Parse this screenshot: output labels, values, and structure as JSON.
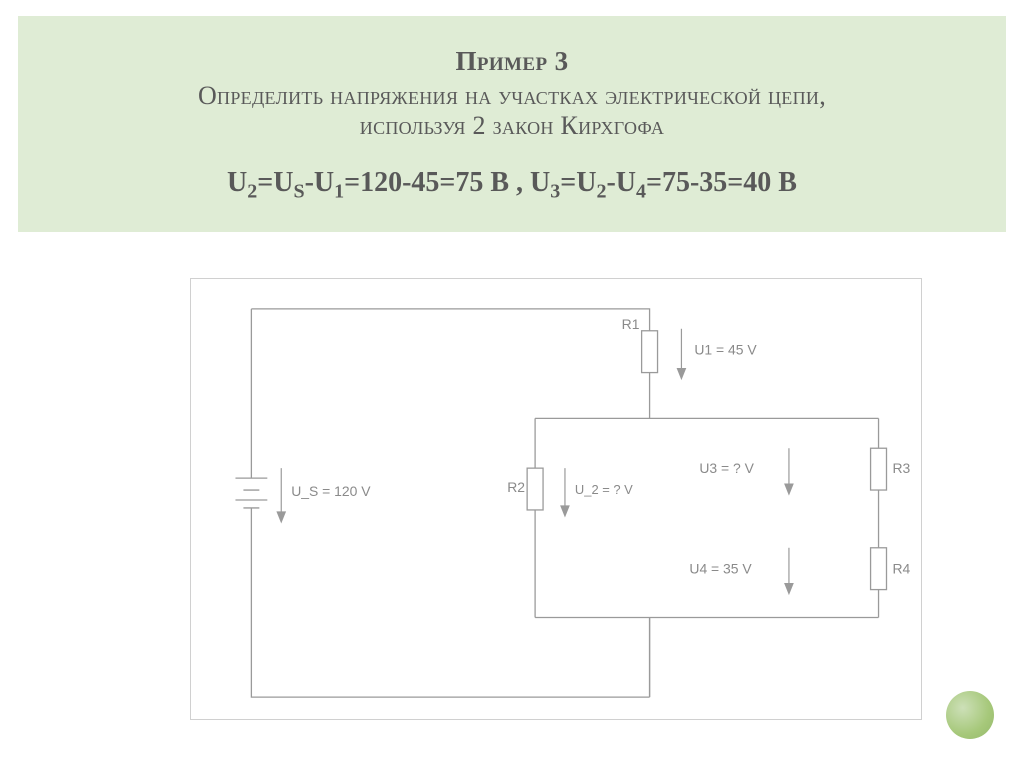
{
  "header": {
    "line1": "Пример 3",
    "line2": "Определить напряжения на участках электрической цепи,",
    "line3": "используя 2 закон Кирхгофа",
    "equation_html": "U<sub>2</sub>=U<sub>S</sub>-U<sub>1</sub>=120-45=75 В ,  U<sub>3</sub>=U<sub>2</sub>-U<sub>4</sub>=75-35=40 В"
  },
  "theme": {
    "header_bg": "#dfecd5",
    "text_color": "#595959",
    "wire_color": "#9a9a9a",
    "label_color": "#8a8a8a",
    "dot_color": "#a6c87a"
  },
  "circuit": {
    "source": {
      "name": "U_S",
      "value": "120 V",
      "label": "U_S   =   120 V"
    },
    "components": [
      {
        "id": "R1",
        "u_id": "U1",
        "u_value": "45 V",
        "u_label": "U1   =   45 V"
      },
      {
        "id": "R2",
        "u_id": "U_2",
        "u_label": "U_2  =   ? V"
      },
      {
        "id": "R3",
        "u_id": "U3",
        "u_label": "U3   =   ? V"
      },
      {
        "id": "R4",
        "u_id": "U4",
        "u_value": "35 V",
        "u_label": "U4   =   35 V"
      }
    ]
  }
}
